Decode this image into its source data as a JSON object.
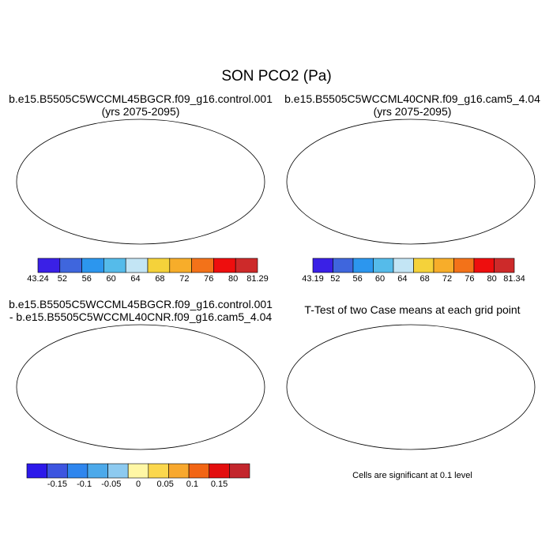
{
  "figure": {
    "title": "SON PCO2 (Pa)",
    "panel_titles": {
      "p1_line1": "b.e15.B5505C5WCCML45BGCR.f09_g16.control.001",
      "p1_line2": "(yrs 2075-2095)",
      "p2_line1": "b.e15.B5505C5WCCML40CNR.f09_g16.cam5_4.04",
      "p2_line2": "(yrs 2075-2095)",
      "p3_line1": "b.e15.B5505C5WCCML45BGCR.f09_g16.control.001",
      "p3_line2": "- b.e15.B5505C5WCCML40CNR.f09_g16.cam5_4.04",
      "p4_line1": "T-Test of two Case means at each grid point"
    },
    "note": "Cells are significant at 0.1 level"
  },
  "colors": {
    "abs_scale": [
      "#3a20e6",
      "#3f66dd",
      "#2c96ee",
      "#55bbea",
      "#c3e5f5",
      "#f5d23a",
      "#f7ad2a",
      "#f37219",
      "#ee0e0e",
      "#cd2a2a"
    ],
    "diff_scale": [
      "#2c19ea",
      "#3d55e0",
      "#2f86ee",
      "#4ca9ea",
      "#8dcaf0",
      "#fff7a5",
      "#fbd74d",
      "#f8a82e",
      "#f26514",
      "#e30e0e",
      "#c3262d"
    ]
  },
  "chart_data": [
    {
      "type": "heatmap",
      "title": "b.e15.B5505C5WCCML45BGCR.f09_g16.control.001 (yrs 2075-2095)",
      "projection": "robinson",
      "colorbar": {
        "label_values": [
          "43.24",
          "52",
          "56",
          "60",
          "64",
          "68",
          "72",
          "76",
          "80",
          "81.29"
        ]
      }
    },
    {
      "type": "heatmap",
      "title": "b.e15.B5505C5WCCML40CNR.f09_g16.cam5_4.04 (yrs 2075-2095)",
      "projection": "robinson",
      "colorbar": {
        "label_values": [
          "43.19",
          "52",
          "56",
          "60",
          "64",
          "68",
          "72",
          "76",
          "80",
          "81.34"
        ]
      }
    },
    {
      "type": "heatmap",
      "title": "b.e15.B5505C5WCCML45BGCR.f09_g16.control.001 - b.e15.B5505C5WCCML40CNR.f09_g16.cam5_4.04",
      "projection": "robinson",
      "colorbar": {
        "label_values": [
          "-0.15",
          "-0.1",
          "-0.05",
          "0",
          "0.05",
          "0.1",
          "0.15"
        ]
      }
    },
    {
      "type": "heatmap",
      "title": "T-Test of two Case means at each grid point",
      "projection": "robinson",
      "note": "Cells are significant at 0.1 level"
    }
  ]
}
